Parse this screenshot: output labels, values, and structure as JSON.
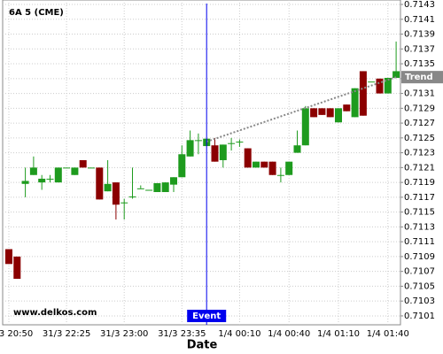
{
  "chart_data": {
    "type": "candlestick",
    "title": "6A 5 (CME)",
    "watermark": "www.delkos.com",
    "x_label": "Date",
    "categories": [
      "31/3 20:50",
      null,
      null,
      null,
      null,
      null,
      null,
      "31/3 22:25",
      null,
      null,
      null,
      null,
      null,
      null,
      "31/3 23:00",
      null,
      null,
      null,
      null,
      null,
      null,
      "31/3 23:35",
      null,
      null,
      null,
      null,
      null,
      null,
      "1/4 00:10",
      null,
      null,
      null,
      null,
      null,
      "1/4 00:40",
      null,
      null,
      null,
      null,
      null,
      "1/4 01:10",
      null,
      null,
      null,
      null,
      null,
      "1/4 01:40",
      null
    ],
    "open": [
      0.711,
      0.7109,
      0.71188,
      0.712,
      0.7119,
      0.71195,
      0.7119,
      0.7121,
      0.712,
      0.7122,
      0.7121,
      0.7121,
      0.71178,
      0.7119,
      0.71163,
      0.71171,
      0.71182,
      0.7118,
      0.71177,
      0.71177,
      0.71187,
      0.71197,
      0.71225,
      0.71247,
      0.71239,
      0.7124,
      0.7122,
      0.71243,
      0.71245,
      0.71236,
      0.7121,
      0.71218,
      0.71218,
      0.712,
      0.712,
      0.7123,
      0.7124,
      0.7129,
      0.7129,
      0.7129,
      0.71271,
      0.71295,
      0.71278,
      0.7134,
      0.71326,
      0.7133,
      0.7131,
      0.71331
    ],
    "high": [
      0.711,
      0.7109,
      0.7121,
      0.71225,
      0.712,
      0.712,
      0.7121,
      0.7121,
      0.7121,
      0.7122,
      0.7121,
      0.7121,
      0.7122,
      0.7119,
      0.71168,
      0.7121,
      0.71186,
      0.7118,
      0.71189,
      0.7119,
      0.71197,
      0.7124,
      0.7126,
      0.71256,
      0.71249,
      0.7125,
      0.71241,
      0.7125,
      0.71248,
      0.71236,
      0.71218,
      0.71218,
      0.71218,
      0.7121,
      0.71218,
      0.7126,
      0.71293,
      0.7129,
      0.7129,
      0.7129,
      0.7129,
      0.71295,
      0.71317,
      0.7134,
      0.71326,
      0.7133,
      0.71331,
      0.7138
    ],
    "low": [
      0.7108,
      0.7106,
      0.7117,
      0.712,
      0.7118,
      0.7119,
      0.7119,
      0.7121,
      0.712,
      0.7121,
      0.7121,
      0.71167,
      0.71178,
      0.7114,
      0.7114,
      0.71168,
      0.71182,
      0.7118,
      0.71177,
      0.71177,
      0.71177,
      0.71197,
      0.71225,
      0.71228,
      0.71239,
      0.71218,
      0.7121,
      0.71233,
      0.71238,
      0.7121,
      0.7121,
      0.7121,
      0.712,
      0.7119,
      0.712,
      0.7123,
      0.7124,
      0.71278,
      0.71281,
      0.71278,
      0.71271,
      0.71286,
      0.71278,
      0.7128,
      0.71326,
      0.7131,
      0.7131,
      0.71331
    ],
    "close": [
      0.7108,
      0.7106,
      0.71192,
      0.7121,
      0.71195,
      0.71195,
      0.7121,
      0.7121,
      0.7121,
      0.7121,
      0.7121,
      0.71167,
      0.71188,
      0.7116,
      0.71163,
      0.71171,
      0.71182,
      0.7118,
      0.71189,
      0.7119,
      0.71197,
      0.71228,
      0.71247,
      0.71247,
      0.71249,
      0.71218,
      0.71241,
      0.71243,
      0.71245,
      0.7121,
      0.71218,
      0.7121,
      0.712,
      0.712,
      0.71218,
      0.7124,
      0.7129,
      0.71278,
      0.71281,
      0.71278,
      0.7129,
      0.71286,
      0.71317,
      0.7128,
      0.71326,
      0.7131,
      0.71331,
      0.7134
    ],
    "up_color": "#1e9b1e",
    "down_color": "#8b0000",
    "ylim": [
      0.70998,
      0.71436
    ],
    "yticks": [
      0.7101,
      0.7103,
      0.7105,
      0.7107,
      0.7109,
      0.7111,
      0.7113,
      0.7115,
      0.7117,
      0.7119,
      0.7121,
      0.7123,
      0.7125,
      0.7127,
      0.7129,
      0.7131,
      0.7133,
      0.7135,
      0.7137,
      0.7139,
      0.7141,
      0.7143
    ],
    "grid": true,
    "event": {
      "label": "Event",
      "index": 24,
      "color": "#0000ee"
    },
    "trend": {
      "label": "Trend",
      "start": {
        "index": 24,
        "value": 0.71245
      },
      "end": {
        "index": 47,
        "value": 0.71332
      }
    }
  }
}
